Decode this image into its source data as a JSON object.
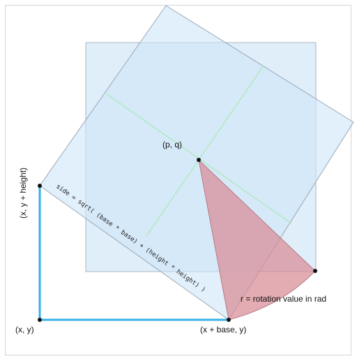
{
  "labels": {
    "origin": "(x, y)",
    "top_left": "(x, y + height)",
    "bottom_right": "(x + base, y)",
    "center": "(p, q)",
    "rotation": "r = rotation value in rad"
  },
  "formula": "side = sqrt( (base * base) + (height * height) )",
  "colors": {
    "square_fill": "#d5e8f8",
    "square_stroke": "#a9b6c4",
    "rotated_fill": "#cfe6f9",
    "rotated_stroke": "#98a7b8",
    "guide_line": "#a6eab0",
    "axis_line": "#39b0e6",
    "wedge_fill": "#d88c96",
    "point": "#111111"
  }
}
